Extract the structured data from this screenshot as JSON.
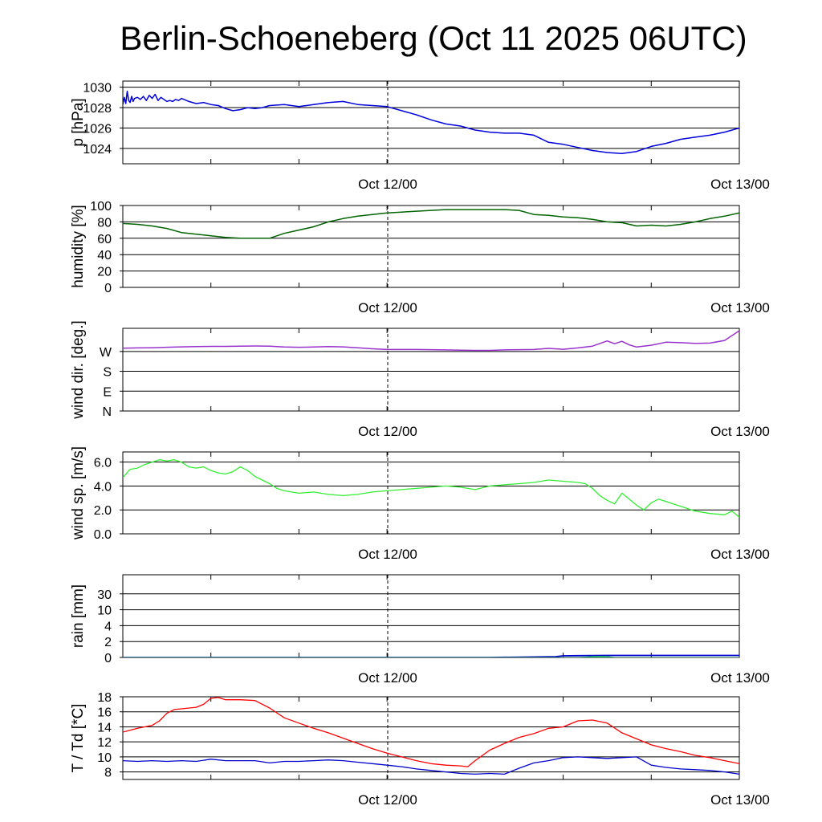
{
  "title": "Berlin-Schoeneberg (Oct 11 2025 06UTC)",
  "x_labels": {
    "mid": "Oct 12/00",
    "end": "Oct 13/00"
  },
  "colors": {
    "pressure": "#0000dd",
    "humidity": "#006400",
    "wind_dir": "#9932cc",
    "wind_speed": "#33ee33",
    "rain": "#0000cc",
    "rain_fill": "#22bb66",
    "temperature": "#ff0000",
    "dewpoint": "#0000cc"
  },
  "chart_data": [
    {
      "type": "line",
      "name": "pressure",
      "ylabel": "p [hPa]",
      "ylim": [
        1022.5,
        1030.6
      ],
      "yticks": [
        {
          "v": 1024,
          "label": "1024"
        },
        {
          "v": 1026,
          "label": "1026"
        },
        {
          "v": 1028,
          "label": "1028"
        },
        {
          "v": 1030,
          "label": "1030"
        }
      ],
      "xlim": [
        0,
        42
      ],
      "series": [
        {
          "name": "p",
          "color": "pressure",
          "width": 1.5,
          "x": [
            0,
            0.1,
            0.2,
            0.3,
            0.4,
            0.5,
            0.6,
            0.7,
            0.8,
            1.0,
            1.2,
            1.4,
            1.6,
            1.8,
            2.0,
            2.2,
            2.4,
            2.6,
            2.8,
            3.0,
            3.2,
            3.4,
            3.6,
            3.8,
            4.0,
            4.5,
            5,
            5.5,
            6,
            6.5,
            7,
            7.5,
            8,
            8.5,
            9,
            9.5,
            10,
            11,
            12,
            13,
            14,
            15,
            16,
            17,
            18,
            19,
            20,
            21,
            22,
            23,
            24,
            25,
            26,
            27,
            28,
            29,
            30,
            31,
            32,
            33,
            34,
            35,
            36,
            37,
            38,
            39,
            40,
            41,
            42
          ],
          "y": [
            1028.3,
            1029.0,
            1028.4,
            1029.6,
            1028.7,
            1028.5,
            1029.1,
            1028.6,
            1028.9,
            1029.0,
            1028.8,
            1029.1,
            1028.7,
            1029.2,
            1028.9,
            1029.3,
            1028.7,
            1029.0,
            1028.8,
            1028.6,
            1028.7,
            1028.6,
            1028.8,
            1028.7,
            1028.9,
            1028.6,
            1028.4,
            1028.5,
            1028.3,
            1028.2,
            1027.9,
            1027.7,
            1027.8,
            1028.0,
            1027.9,
            1028.0,
            1028.2,
            1028.3,
            1028.1,
            1028.3,
            1028.5,
            1028.6,
            1028.3,
            1028.2,
            1028.1,
            1027.7,
            1027.3,
            1026.8,
            1026.4,
            1026.2,
            1025.8,
            1025.6,
            1025.5,
            1025.5,
            1025.3,
            1024.6,
            1024.4,
            1024.1,
            1023.8,
            1023.6,
            1023.5,
            1023.7,
            1024.2,
            1024.5,
            1024.9,
            1025.1,
            1025.3,
            1025.6,
            1026.0
          ]
        }
      ]
    },
    {
      "type": "line",
      "name": "humidity",
      "ylabel": "humidity [%]",
      "ylim": [
        0,
        100
      ],
      "yticks": [
        {
          "v": 0,
          "label": "0"
        },
        {
          "v": 20,
          "label": "20"
        },
        {
          "v": 40,
          "label": "40"
        },
        {
          "v": 60,
          "label": "60"
        },
        {
          "v": 80,
          "label": "80"
        },
        {
          "v": 100,
          "label": "100"
        }
      ],
      "xlim": [
        0,
        42
      ],
      "series": [
        {
          "name": "humidity",
          "color": "humidity",
          "width": 1.5,
          "x": [
            0,
            1,
            2,
            3,
            4,
            5,
            6,
            7,
            8,
            9,
            10,
            11,
            12,
            13,
            14,
            15,
            16,
            17,
            18,
            19,
            20,
            21,
            22,
            23,
            24,
            25,
            26,
            27,
            28,
            29,
            30,
            31,
            32,
            33,
            34,
            35,
            36,
            37,
            38,
            39,
            40,
            41,
            42
          ],
          "y": [
            78,
            77,
            75,
            72,
            67,
            65,
            63,
            61,
            60,
            60,
            60,
            66,
            70,
            74,
            80,
            84,
            87,
            89,
            91,
            92,
            93,
            94,
            95,
            95,
            95,
            95,
            95,
            94,
            89,
            88,
            86,
            85,
            83,
            80,
            79,
            75,
            76,
            75,
            77,
            80,
            84,
            87,
            91
          ]
        }
      ]
    },
    {
      "type": "line",
      "name": "wind_direction",
      "ylabel": "wind dir. [deg.]",
      "ylim": [
        0,
        375
      ],
      "yticks": [
        {
          "v": 0,
          "label": "N"
        },
        {
          "v": 90,
          "label": "E"
        },
        {
          "v": 180,
          "label": "S"
        },
        {
          "v": 270,
          "label": "W"
        }
      ],
      "xlim": [
        0,
        42
      ],
      "series": [
        {
          "name": "direction",
          "color": "wind_dir",
          "width": 1.5,
          "x": [
            0,
            1,
            2,
            3,
            4,
            5,
            6,
            7,
            8,
            9,
            10,
            11,
            12,
            13,
            14,
            15,
            16,
            17,
            18,
            19,
            20,
            21,
            22,
            23,
            24,
            25,
            26,
            27,
            28,
            29,
            30,
            31,
            32,
            33,
            33.5,
            34,
            34.5,
            35,
            36,
            37,
            38,
            39,
            40,
            41,
            42
          ],
          "y": [
            285,
            286,
            287,
            289,
            291,
            292,
            293,
            293,
            294,
            295,
            294,
            290,
            289,
            290,
            292,
            291,
            287,
            282,
            279,
            279,
            279,
            278,
            277,
            276,
            275,
            275,
            277,
            278,
            279,
            284,
            280,
            286,
            294,
            318,
            305,
            316,
            300,
            290,
            298,
            312,
            310,
            307,
            308,
            320,
            364
          ]
        }
      ]
    },
    {
      "type": "line",
      "name": "wind_speed",
      "ylabel": "wind sp. [m/s]",
      "ylim": [
        0,
        6.85
      ],
      "yticks": [
        {
          "v": 0,
          "label": "0.0"
        },
        {
          "v": 2,
          "label": "2.0"
        },
        {
          "v": 4,
          "label": "4.0"
        },
        {
          "v": 6,
          "label": "6.0"
        }
      ],
      "xlim": [
        0,
        42
      ],
      "series": [
        {
          "name": "speed",
          "color": "wind_speed",
          "width": 1.3,
          "x": [
            0,
            0.5,
            1,
            1.5,
            2,
            2.5,
            3,
            3.5,
            4,
            4.5,
            5,
            5.5,
            6,
            6.5,
            7,
            7.5,
            8,
            8.5,
            9,
            9.5,
            10,
            10.5,
            11,
            12,
            13,
            14,
            15,
            16,
            17,
            18,
            19,
            20,
            21,
            22,
            23,
            24,
            25,
            26,
            27,
            28,
            29,
            30,
            31,
            31.5,
            32,
            32.5,
            33,
            33.5,
            34,
            34.5,
            35,
            35.5,
            36,
            36.5,
            37,
            38,
            39,
            40,
            41,
            41.5,
            42
          ],
          "y": [
            4.7,
            5.4,
            5.5,
            5.8,
            6.0,
            6.2,
            6.1,
            6.2,
            6.0,
            5.6,
            5.5,
            5.6,
            5.3,
            5.1,
            5.0,
            5.2,
            5.6,
            5.3,
            4.8,
            4.5,
            4.2,
            3.8,
            3.6,
            3.4,
            3.5,
            3.3,
            3.2,
            3.3,
            3.5,
            3.6,
            3.7,
            3.8,
            3.9,
            4.0,
            3.9,
            3.7,
            4.0,
            4.1,
            4.2,
            4.3,
            4.5,
            4.4,
            4.3,
            4.2,
            3.8,
            3.2,
            2.8,
            2.5,
            3.4,
            2.9,
            2.4,
            2.0,
            2.6,
            2.9,
            2.7,
            2.3,
            1.9,
            1.7,
            1.6,
            1.9,
            1.4
          ]
        }
      ]
    },
    {
      "type": "area",
      "name": "rain",
      "ylabel": "rain [mm]",
      "scale": "custom",
      "ylim_index": [
        0,
        5.2
      ],
      "ytick_values": [
        0,
        2,
        4,
        10,
        30
      ],
      "yticks": [
        {
          "v": 0,
          "label": "0"
        },
        {
          "v": 2,
          "label": "2"
        },
        {
          "v": 4,
          "label": "4"
        },
        {
          "v": 10,
          "label": "10"
        },
        {
          "v": 30,
          "label": "30"
        }
      ],
      "xlim": [
        0,
        42
      ],
      "series": [
        {
          "name": "accumulated",
          "color": "rain",
          "width": 1.8,
          "x": [
            0,
            25,
            26,
            27,
            28,
            29,
            29.5,
            30,
            31,
            32,
            33,
            35,
            38,
            42
          ],
          "y": [
            0,
            0,
            0.02,
            0.04,
            0.06,
            0.08,
            0.1,
            0.2,
            0.22,
            0.24,
            0.25,
            0.25,
            0.25,
            0.25
          ]
        },
        {
          "name": "rate",
          "color": "rain_fill",
          "width": 1,
          "fill": true,
          "x": [
            0,
            31,
            31.5,
            32,
            32.5,
            33,
            33.5,
            42
          ],
          "y": [
            0,
            0,
            0.05,
            0.12,
            0.14,
            0.12,
            0,
            0
          ]
        }
      ]
    },
    {
      "type": "line",
      "name": "temperature",
      "ylabel": "T / Td [*C]",
      "ylim": [
        7,
        18
      ],
      "yticks": [
        {
          "v": 8,
          "label": "8"
        },
        {
          "v": 10,
          "label": "10"
        },
        {
          "v": 12,
          "label": "12"
        },
        {
          "v": 14,
          "label": "14"
        },
        {
          "v": 16,
          "label": "16"
        },
        {
          "v": 18,
          "label": "18"
        }
      ],
      "xlim": [
        0,
        42
      ],
      "series": [
        {
          "name": "T",
          "color": "temperature",
          "width": 1.3,
          "x": [
            0,
            1,
            2,
            2.5,
            3,
            3.5,
            4,
            5,
            5.5,
            6,
            6.5,
            7,
            8,
            9,
            10,
            11,
            12,
            13,
            14,
            15,
            16,
            17,
            18,
            19,
            20,
            21,
            22,
            23,
            23.5,
            24,
            25,
            26,
            27,
            28,
            29,
            30,
            31,
            32,
            33,
            34,
            35,
            36,
            37,
            38,
            39,
            40,
            41,
            42
          ],
          "y": [
            13.3,
            13.8,
            14.2,
            14.8,
            15.8,
            16.3,
            16.4,
            16.6,
            17.0,
            17.8,
            17.9,
            17.6,
            17.6,
            17.5,
            16.5,
            15.2,
            14.5,
            13.8,
            13.2,
            12.5,
            11.8,
            11.1,
            10.5,
            10.0,
            9.5,
            9.1,
            8.9,
            8.8,
            8.7,
            9.5,
            10.9,
            11.8,
            12.6,
            13.1,
            13.8,
            14.0,
            14.8,
            14.9,
            14.5,
            13.2,
            12.4,
            11.6,
            11.1,
            10.7,
            10.2,
            9.9,
            9.5,
            9.1
          ]
        },
        {
          "name": "Td",
          "color": "dewpoint",
          "width": 1.3,
          "x": [
            0,
            1,
            2,
            3,
            4,
            5,
            6,
            7,
            8,
            9,
            10,
            11,
            12,
            13,
            14,
            15,
            16,
            17,
            18,
            19,
            20,
            21,
            22,
            23,
            24,
            25,
            26,
            27,
            28,
            29,
            30,
            31,
            32,
            33,
            34,
            35,
            36,
            37,
            38,
            39,
            40,
            41,
            42
          ],
          "y": [
            9.5,
            9.4,
            9.5,
            9.4,
            9.5,
            9.4,
            9.7,
            9.5,
            9.5,
            9.5,
            9.2,
            9.4,
            9.4,
            9.5,
            9.6,
            9.5,
            9.3,
            9.1,
            8.9,
            8.7,
            8.4,
            8.2,
            8.0,
            7.8,
            7.7,
            7.8,
            7.7,
            8.5,
            9.2,
            9.5,
            9.9,
            10.0,
            9.9,
            9.8,
            9.9,
            10.0,
            8.9,
            8.6,
            8.4,
            8.3,
            8.2,
            8.0,
            7.7
          ]
        }
      ]
    }
  ]
}
